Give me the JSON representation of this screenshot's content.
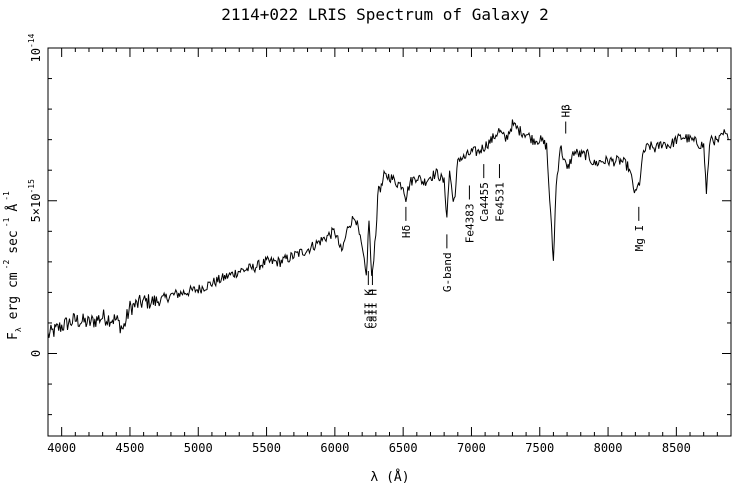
{
  "chart_data": {
    "type": "line",
    "title": "2114+022 LRIS Spectrum of Galaxy 2",
    "xlabel": "λ (Å)",
    "ylabel": {
      "base": "F",
      "sub": "λ",
      "units_a": "erg cm",
      "exp_a": "-2",
      "units_b": "sec",
      "exp_b": "-1",
      "units_c": "Å",
      "exp_c": "-1"
    },
    "xlim": [
      3900,
      8900
    ],
    "ylim": [
      -2.7e-15,
      1e-14
    ],
    "x_ticks": [
      4000,
      4500,
      5000,
      5500,
      6000,
      6500,
      7000,
      7500,
      8000,
      8500
    ],
    "x_tick_labels": [
      "4000",
      "4500",
      "5000",
      "5500",
      "6000",
      "6500",
      "7000",
      "7500",
      "8000",
      "8500"
    ],
    "y_ticks": [
      {
        "value": 0,
        "label": "0"
      },
      {
        "value": 5e-15,
        "label": "5×10",
        "exp": "-15"
      },
      {
        "value": 1e-14,
        "label": "10",
        "exp": "-14"
      }
    ],
    "grid": false,
    "series": [
      {
        "x": [
          3900,
          4000,
          4100,
          4200,
          4300,
          4400,
          4450,
          4500,
          4600,
          4700,
          4800,
          4900,
          5000,
          5100,
          5200,
          5300,
          5400,
          5500,
          5600,
          5700,
          5800,
          5900,
          6000,
          6050,
          6100,
          6150,
          6200,
          6230,
          6250,
          6270,
          6300,
          6320,
          6340,
          6360,
          6400,
          6450,
          6500,
          6520,
          6550,
          6600,
          6650,
          6700,
          6750,
          6800,
          6820,
          6840,
          6860,
          6880,
          6900,
          6950,
          7000,
          7050,
          7100,
          7150,
          7200,
          7250,
          7300,
          7350,
          7400,
          7450,
          7500,
          7550,
          7580,
          7600,
          7620,
          7650,
          7700,
          7750,
          7800,
          7850,
          7900,
          7950,
          8000,
          8050,
          8100,
          8150,
          8200,
          8230,
          8260,
          8300,
          8350,
          8400,
          8450,
          8500,
          8550,
          8600,
          8650,
          8700,
          8720,
          8750,
          8800,
          8850,
          8880
        ],
        "y": [
          6e-16,
          9e-16,
          1.1e-15,
          1e-15,
          1.2e-15,
          1.1e-15,
          8e-16,
          1.5e-15,
          1.7e-15,
          1.7e-15,
          1.9e-15,
          2e-15,
          2.1e-15,
          2.3e-15,
          2.5e-15,
          2.7e-15,
          2.8e-15,
          3e-15,
          3e-15,
          3.2e-15,
          3.4e-15,
          3.7e-15,
          4e-15,
          3.3e-15,
          4.2e-15,
          4.5e-15,
          3.4e-15,
          2.5e-15,
          4.4e-15,
          2.4e-15,
          4e-15,
          5.5e-15,
          5.4e-15,
          5.8e-15,
          5.8e-15,
          5.6e-15,
          5.5e-15,
          5.1e-15,
          5.6e-15,
          5.8e-15,
          5.6e-15,
          5.8e-15,
          5.9e-15,
          5.6e-15,
          4.5e-15,
          6e-15,
          5.2e-15,
          5e-15,
          6.4e-15,
          6.4e-15,
          6.6e-15,
          6.6e-15,
          6.8e-15,
          7e-15,
          7.3e-15,
          7e-15,
          7.5e-15,
          7.3e-15,
          7.2e-15,
          7e-15,
          7e-15,
          6.8e-15,
          4.5e-15,
          3e-15,
          5.5e-15,
          6.8e-15,
          6e-15,
          6.6e-15,
          6.5e-15,
          6.5e-15,
          6.2e-15,
          6.3e-15,
          6.3e-15,
          6.3e-15,
          6.3e-15,
          6.1e-15,
          5.2e-15,
          5.6e-15,
          6.6e-15,
          6.8e-15,
          6.7e-15,
          6.9e-15,
          6.8e-15,
          7e-15,
          7.1e-15,
          7e-15,
          6.9e-15,
          6.8e-15,
          5.3e-15,
          7.1e-15,
          6.9e-15,
          7.2e-15,
          7e-15
        ]
      }
    ],
    "features": [
      {
        "label": "CaII K",
        "x": 6245,
        "y": 2.7e-15,
        "dir": "down"
      },
      {
        "label": "CaII H",
        "x": 6275,
        "y": 2.7e-15,
        "dir": "down"
      },
      {
        "label": "Hδ",
        "x": 6520,
        "y": 4.8e-15,
        "dir": "down"
      },
      {
        "label": "G-band",
        "x": 6820,
        "y": 3.9e-15,
        "dir": "down"
      },
      {
        "label": "Fe4383",
        "x": 6985,
        "y": 5.5e-15,
        "dir": "down"
      },
      {
        "label": "Ca4455",
        "x": 7090,
        "y": 6.2e-15,
        "dir": "down"
      },
      {
        "label": "Fe4531",
        "x": 7205,
        "y": 6.2e-15,
        "dir": "down"
      },
      {
        "label": "Hβ",
        "x": 7690,
        "y": 7.2e-15,
        "dir": "up"
      },
      {
        "label": "Mg I",
        "x": 8225,
        "y": 4.8e-15,
        "dir": "down"
      }
    ]
  }
}
